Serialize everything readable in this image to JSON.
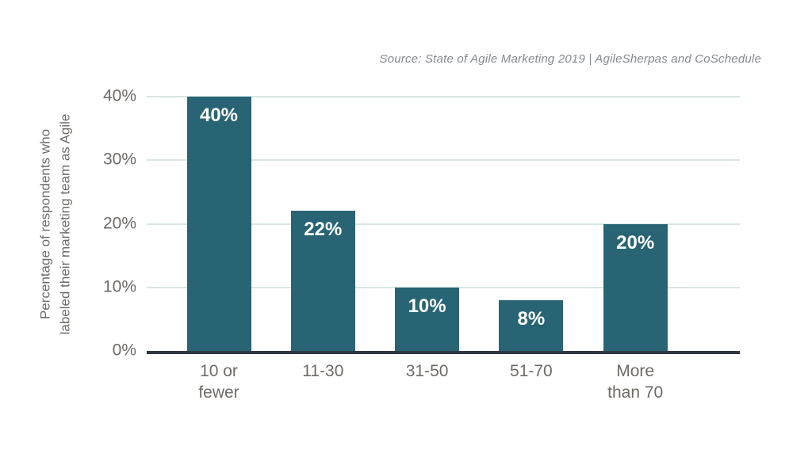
{
  "chart_data": {
    "type": "bar",
    "source": "Source: State of Agile Marketing 2019 | AgileSherpas and CoSchedule",
    "ylabel": "Percentage of respondents who\nlabeled their marketing team as Agile",
    "xlabel": "",
    "categories": [
      "10 or\nfewer",
      "11-30",
      "31-50",
      "51-70",
      "More\nthan 70"
    ],
    "values": [
      40,
      22,
      10,
      8,
      20
    ],
    "bar_labels": [
      "40%",
      "22%",
      "10%",
      "8%",
      "20%"
    ],
    "yticks": [
      {
        "label": "0%",
        "value": 0
      },
      {
        "label": "10%",
        "value": 10
      },
      {
        "label": "20%",
        "value": 20
      },
      {
        "label": "30%",
        "value": 30
      },
      {
        "label": "40%",
        "value": 40
      }
    ],
    "gridlines": [
      10,
      20,
      30,
      40
    ],
    "ylim": [
      0,
      40
    ],
    "grid": "horizontal",
    "legend_position": "none",
    "colors": {
      "bar": "#286474",
      "gridline": "#d6e7e2",
      "axis": "#303645",
      "tick_text": "#6e6a66",
      "bar_label": "#ffffff",
      "source_text": "#85898e"
    }
  }
}
